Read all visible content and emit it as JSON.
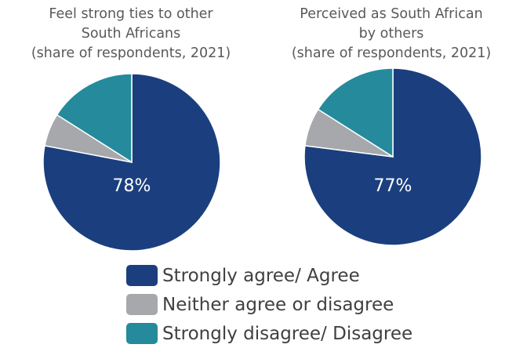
{
  "colors": {
    "agree": "#1b3f7e",
    "neutral": "#a6a8ab",
    "disagree": "#258a9c",
    "title": "#595959",
    "label": "#ffffff"
  },
  "chart_data": [
    {
      "type": "pie",
      "title_lines": [
        "Feel strong ties to other",
        "South Africans",
        "(share of respondents, 2021)"
      ],
      "categories": [
        "Strongly agree/ Agree",
        "Neither agree or disagree",
        "Strongly disagree/ Disagree"
      ],
      "values": [
        78,
        6,
        16
      ],
      "data_label": "78%"
    },
    {
      "type": "pie",
      "title_lines": [
        "Perceived as South African",
        "by others",
        "(share of respondents, 2021)"
      ],
      "categories": [
        "Strongly agree/ Agree",
        "Neither agree or disagree",
        "Strongly disagree/ Disagree"
      ],
      "values": [
        77,
        7,
        16
      ],
      "data_label": "77%"
    }
  ],
  "legend": [
    {
      "label": "Strongly agree/ Agree",
      "color": "#1b3f7e"
    },
    {
      "label": "Neither agree or disagree",
      "color": "#a6a8ab"
    },
    {
      "label": "Strongly disagree/ Disagree",
      "color": "#258a9c"
    }
  ]
}
